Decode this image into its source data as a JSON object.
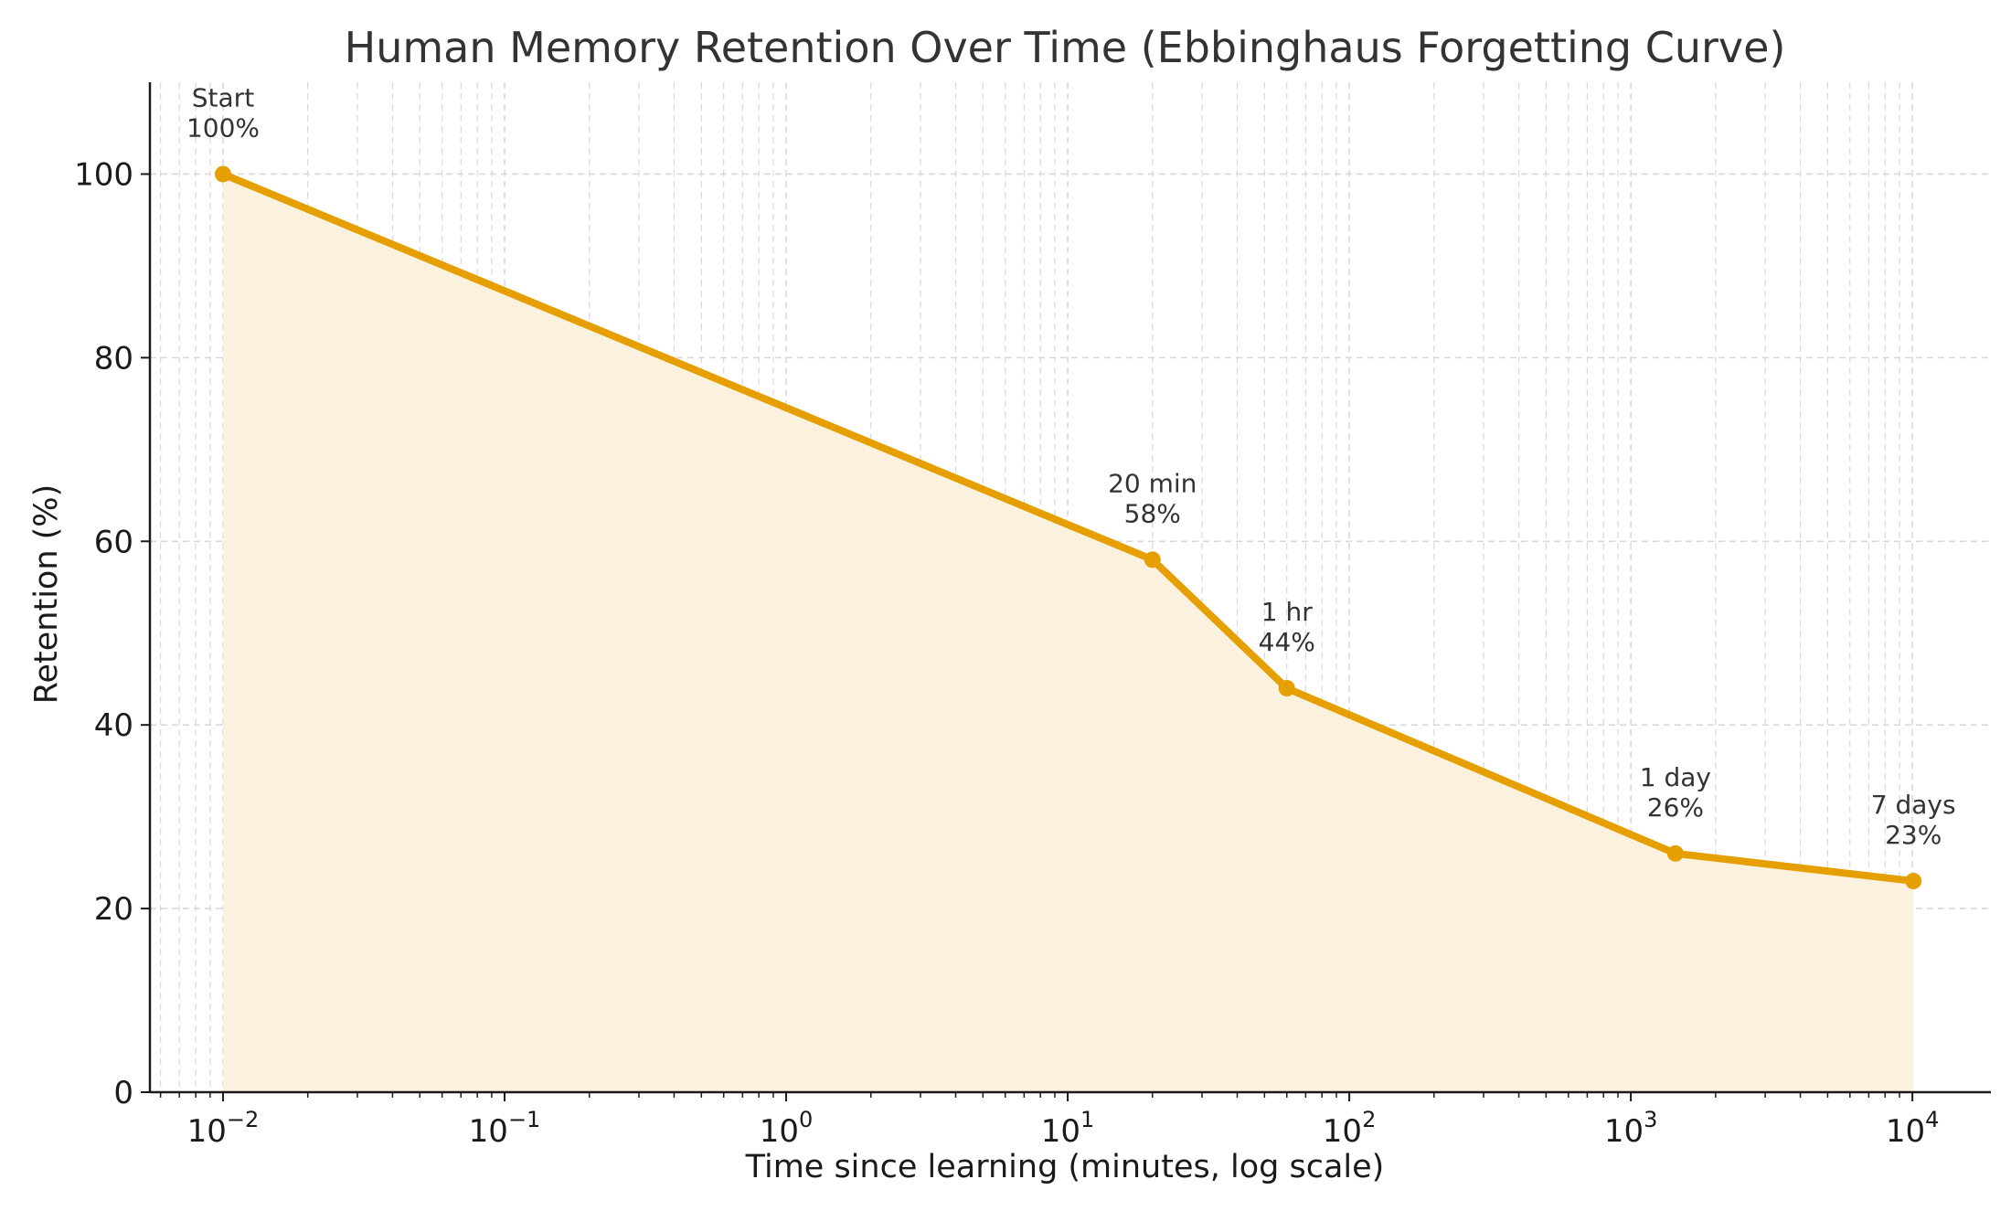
{
  "chart_data": {
    "type": "line",
    "title": "Human Memory Retention Over Time (Ebbinghaus Forgetting Curve)",
    "xlabel": "Time since learning (minutes, log scale)",
    "ylabel": "Retention (%)",
    "x_scale": "log",
    "xlim": [
      0.0055,
      19000
    ],
    "ylim": [
      0,
      110
    ],
    "x_ticks": [
      {
        "base": "10",
        "exp": "−2",
        "value": 0.01
      },
      {
        "base": "10",
        "exp": "−1",
        "value": 0.1
      },
      {
        "base": "10",
        "exp": "0",
        "value": 1
      },
      {
        "base": "10",
        "exp": "1",
        "value": 10
      },
      {
        "base": "10",
        "exp": "2",
        "value": 100
      },
      {
        "base": "10",
        "exp": "3",
        "value": 1000
      },
      {
        "base": "10",
        "exp": "4",
        "value": 10000
      }
    ],
    "y_ticks": [
      {
        "label": "0",
        "value": 0
      },
      {
        "label": "20",
        "value": 20
      },
      {
        "label": "40",
        "value": 40
      },
      {
        "label": "60",
        "value": 60
      },
      {
        "label": "80",
        "value": 80
      },
      {
        "label": "100",
        "value": 100
      }
    ],
    "grid": true,
    "area_fill": true,
    "line_color": "#e69f00",
    "fill_color": "#fbf1df",
    "grid_color": "#d9d9d9",
    "points": [
      {
        "x": 0.01,
        "y": 100,
        "label": "Start",
        "value_label": "100%"
      },
      {
        "x": 20,
        "y": 58,
        "label": "20 min",
        "value_label": "58%"
      },
      {
        "x": 60,
        "y": 44,
        "label": "1 hr",
        "value_label": "44%"
      },
      {
        "x": 1440,
        "y": 26,
        "label": "1 day",
        "value_label": "26%"
      },
      {
        "x": 10080,
        "y": 23,
        "label": "7 days",
        "value_label": "23%"
      }
    ]
  }
}
